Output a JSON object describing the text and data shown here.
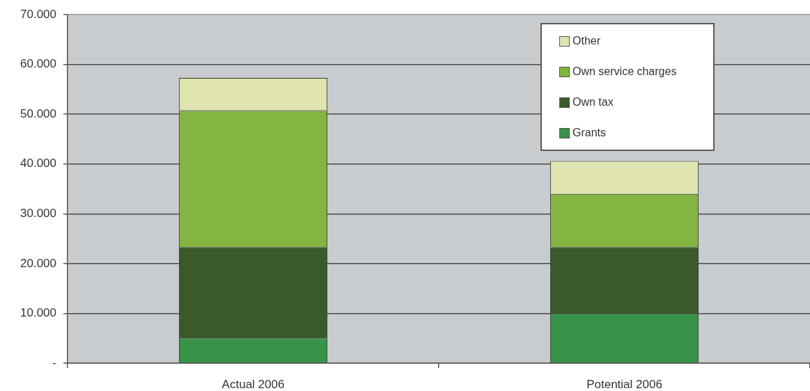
{
  "chart_data": {
    "type": "bar",
    "stacked": true,
    "categories": [
      "Actual 2006",
      "Potential 2006"
    ],
    "series": [
      {
        "name": "Grants",
        "color": "#37934a",
        "values": [
          5000,
          10000
        ]
      },
      {
        "name": "Own tax",
        "color": "#3a5a2b",
        "values": [
          18300,
          13300
        ]
      },
      {
        "name": "Own service charges",
        "color": "#84b442",
        "values": [
          27500,
          10700
        ]
      },
      {
        "name": "Other",
        "color": "#dfe4b0",
        "values": [
          6500,
          6600
        ]
      }
    ],
    "ylim": [
      0,
      70000
    ],
    "yticks": [
      {
        "value": 0,
        "label": "-"
      },
      {
        "value": 10000,
        "label": "10.000"
      },
      {
        "value": 20000,
        "label": "20.000"
      },
      {
        "value": 30000,
        "label": "30.000"
      },
      {
        "value": 40000,
        "label": "40.000"
      },
      {
        "value": 50000,
        "label": "50.000"
      },
      {
        "value": 60000,
        "label": "60.000"
      },
      {
        "value": 70000,
        "label": "70.000"
      }
    ],
    "grid": "y",
    "legend": "top right"
  }
}
